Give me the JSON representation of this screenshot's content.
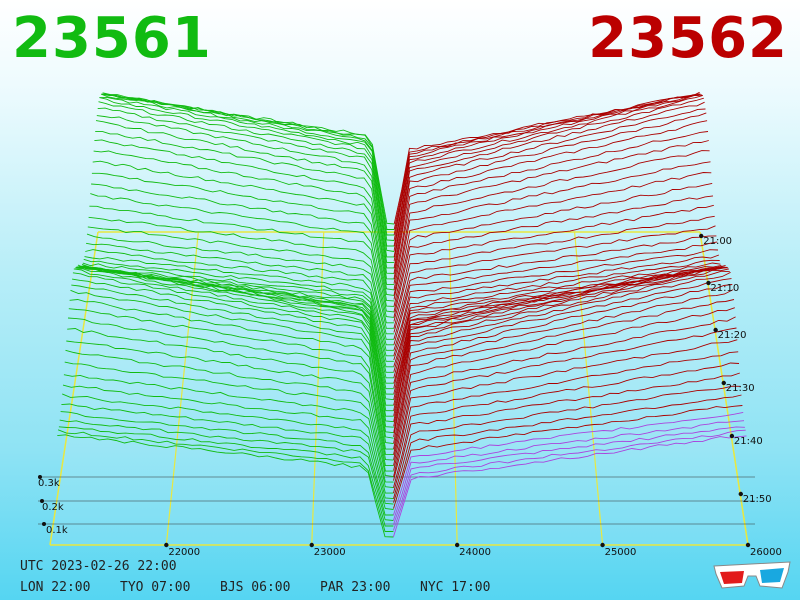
{
  "header": {
    "bid": "23561",
    "ask": "23562",
    "bid_color": "#11bb11",
    "ask_color": "#bb0000"
  },
  "footer": {
    "utc": "UTC 2023-02-26 22:00",
    "zones": [
      "LON 22:00",
      "TYO 07:00",
      "BJS 06:00",
      "PAR 23:00",
      "NYC 17:00"
    ]
  },
  "chart_data": {
    "type": "area",
    "x_ticks": [
      "22000",
      "23000",
      "24000",
      "25000",
      "26000"
    ],
    "xlim": [
      21200,
      26000
    ],
    "mid_price": 23561.5,
    "z_ticks": [
      "0.1k",
      "0.2k",
      "0.3k"
    ],
    "time_ticks": [
      "21:00",
      "21:10",
      "21:20",
      "21:30",
      "21:40",
      "21:50"
    ],
    "num_snapshots": 58,
    "series": [
      {
        "side": "bid",
        "color": "#11bb11"
      },
      {
        "side": "ask",
        "color": "#aa0000"
      }
    ],
    "grid": true
  },
  "icons": {
    "glasses": "3d-glasses-icon"
  }
}
